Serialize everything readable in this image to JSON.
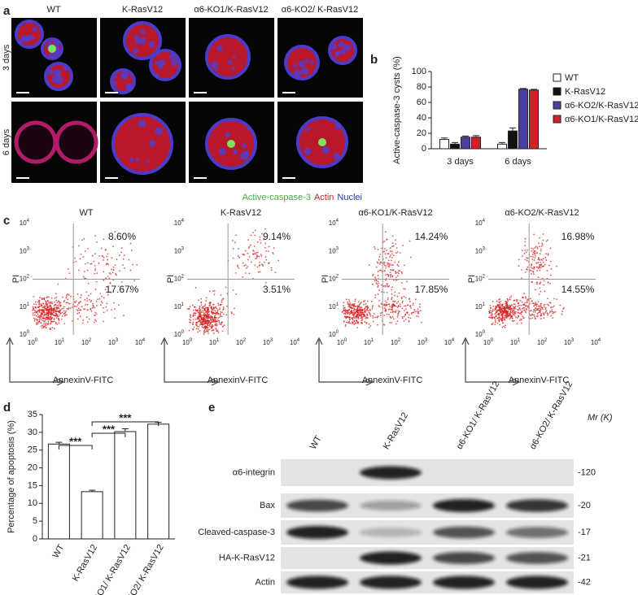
{
  "panel_labels": [
    "a",
    "b",
    "c",
    "d",
    "e"
  ],
  "panel_a": {
    "columns": [
      "WT",
      "K-RasV12",
      "α6-KO1/K-RasV12",
      "α6-KO2/ K-RasV12"
    ],
    "rows": [
      "3 days",
      "6 days"
    ],
    "legend": [
      "Active-caspase-3",
      "Actin",
      "Nuclei"
    ]
  },
  "chart_data": [
    {
      "type": "bar",
      "y_label": "Active-caspase-3 cysts (%)",
      "categories": [
        "3 days",
        "6 days"
      ],
      "series": [
        {
          "name": "WT",
          "color": "#ffffff",
          "values": [
            12,
            6
          ],
          "errors": [
            2,
            2
          ]
        },
        {
          "name": "K-RasV12",
          "color": "#111111",
          "values": [
            6,
            23
          ],
          "errors": [
            2,
            4
          ]
        },
        {
          "name": "α6-KO2/K-RasV12",
          "color": "#4b3fa6",
          "values": [
            15,
            77
          ],
          "errors": [
            1.5,
            1
          ]
        },
        {
          "name": "α6-KO1/K-RasV12",
          "color": "#d0202a",
          "values": [
            15,
            76
          ],
          "errors": [
            2,
            1
          ]
        }
      ],
      "ylim": [
        0,
        100
      ],
      "yticks": [
        0,
        20,
        40,
        60,
        80,
        100
      ]
    },
    {
      "type": "bar",
      "y_label": "Percentage of apoptosis (%)",
      "categories": [
        "WT",
        "K-RasV12",
        "α6-KO1/ K-RasV12",
        "α6-KO2/ K-RasV12"
      ],
      "values": [
        26.7,
        13.3,
        30.2,
        32.3
      ],
      "errors": [
        0.5,
        0.4,
        0.8,
        0.5
      ],
      "color": "#ffffff",
      "ylim": [
        0,
        35
      ],
      "yticks": [
        0,
        5,
        10,
        15,
        20,
        25,
        30,
        35
      ],
      "annotations": [
        "***",
        "***",
        "***"
      ]
    }
  ],
  "panel_c": {
    "plots": [
      {
        "title": "WT",
        "upper_right": "8.60%",
        "lower_right": "17.67%"
      },
      {
        "title": "K-RasV12",
        "upper_right": "9.14%",
        "lower_right": "3.51%"
      },
      {
        "title": "α6-KO1/K-RasV12",
        "upper_right": "14.24%",
        "lower_right": "17.85%"
      },
      {
        "title": "α6-KO2/K-RasV12",
        "upper_right": "16.98%",
        "lower_right": "14.55%"
      }
    ],
    "y_label": "PI",
    "x_label": "AnnexinV-FITC",
    "tick_base": "10",
    "tick_exponents": [
      "0",
      "1",
      "2",
      "3",
      "4"
    ]
  },
  "panel_e": {
    "lanes": [
      "WT",
      "K-RasV12",
      "α6-KO1/ K-RasV12",
      "α6-KO2/ K-RasV12"
    ],
    "mr_label": "Mr (K)",
    "rows": [
      {
        "label": "α6-integrin",
        "marker": "-120"
      },
      {
        "label": "Bax",
        "marker": "-20"
      },
      {
        "label": "Cleaved-caspase-3",
        "marker": "-17"
      },
      {
        "label": "HA-K-RasV12",
        "marker": "-21"
      },
      {
        "label": "Actin",
        "marker": "-42"
      }
    ]
  }
}
